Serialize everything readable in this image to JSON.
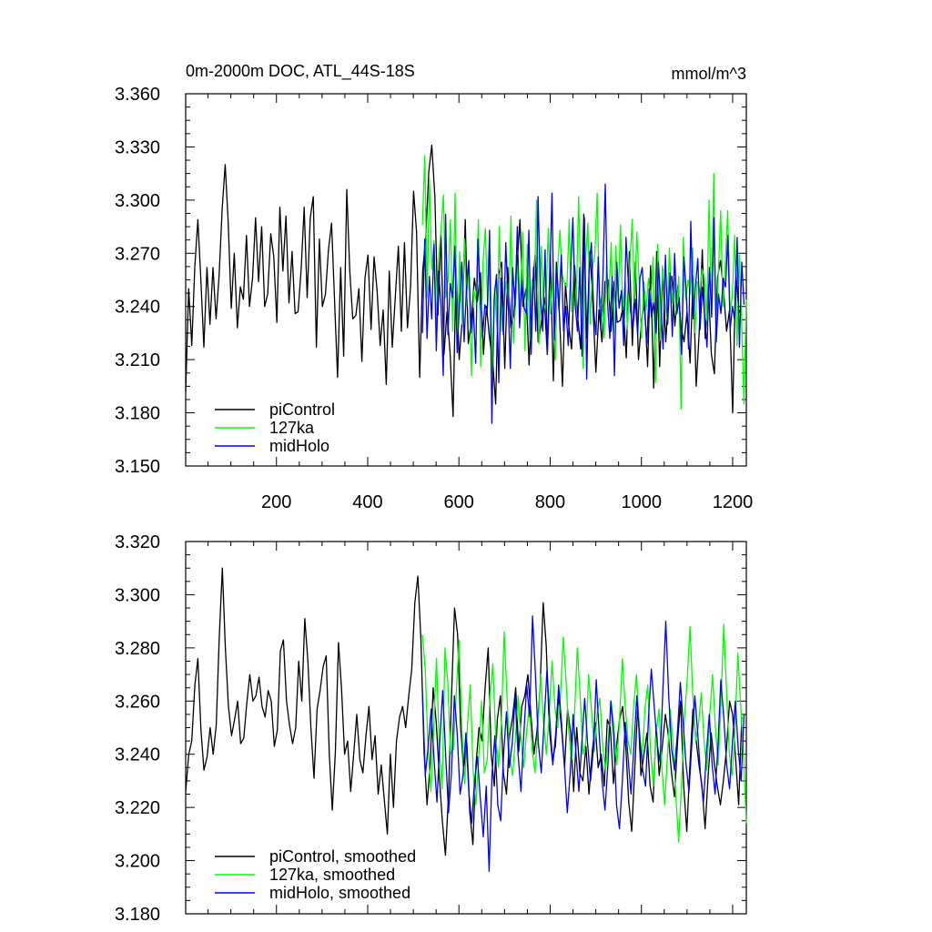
{
  "chart_data": [
    {
      "type": "line",
      "title": "0m-2000m DOC, ATL_44S-18S",
      "units": "mmol/m^3",
      "xlabel": "",
      "ylabel": "",
      "xlim": [
        1,
        1230
      ],
      "ylim": [
        3.15,
        3.36
      ],
      "xticks": [
        200,
        400,
        600,
        800,
        1000,
        1200
      ],
      "xtick_labels": [
        "200",
        "400",
        "600",
        "800",
        "1000",
        "1200"
      ],
      "yticks": [
        3.15,
        3.18,
        3.21,
        3.24,
        3.27,
        3.3,
        3.33,
        3.36
      ],
      "ytick_labels": [
        "3.150",
        "3.180",
        "3.210",
        "3.240",
        "3.270",
        "3.300",
        "3.330",
        "3.360"
      ],
      "legend": "lower-left",
      "series": [
        {
          "name": "piControl",
          "color": "#000000",
          "x_range": [
            1,
            1220
          ],
          "approx_mean": 3.25,
          "approx_min": 3.178,
          "approx_max": 3.331,
          "values": [
            3.192,
            3.25,
            3.218,
            3.262,
            3.289,
            3.255,
            3.217,
            3.262,
            3.23,
            3.262,
            3.233,
            3.257,
            3.295,
            3.32,
            3.288,
            3.239,
            3.27,
            3.228,
            3.251,
            3.244,
            3.28,
            3.24,
            3.256,
            3.29,
            3.254,
            3.285,
            3.24,
            3.247,
            3.281,
            3.268,
            3.231,
            3.296,
            3.26,
            3.291,
            3.242,
            3.271,
            3.236,
            3.237,
            3.261,
            3.296,
            3.245,
            3.29,
            3.302,
            3.217,
            3.278,
            3.24,
            3.247,
            3.272,
            3.287,
            3.243,
            3.2,
            3.262,
            3.212,
            3.306,
            3.26,
            3.233,
            3.235,
            3.25,
            3.209,
            3.256,
            3.269,
            3.227,
            3.268,
            3.249,
            3.218,
            3.238,
            3.196,
            3.26,
            3.217,
            3.246,
            3.274,
            3.226,
            3.276,
            3.228,
            3.251,
            3.305,
            3.282,
            3.2,
            3.26,
            3.279,
            3.316,
            3.331,
            3.302,
            3.235,
            3.28,
            3.213,
            3.237,
            3.214,
            3.178,
            3.262,
            3.21,
            3.232,
            3.289,
            3.219,
            3.232,
            3.256,
            3.243,
            3.259,
            3.213,
            3.24,
            3.222,
            3.21,
            3.185,
            3.258,
            3.265,
            3.205,
            3.262,
            3.228,
            3.235,
            3.262,
            3.289,
            3.24,
            3.25,
            3.207,
            3.248,
            3.269,
            3.22,
            3.23,
            3.245,
            3.213,
            3.269,
            3.198,
            3.265,
            3.235,
            3.195,
            3.253,
            3.23,
            3.216,
            3.263,
            3.234,
            3.216,
            3.292,
            3.222,
            3.271,
            3.241,
            3.203,
            3.238,
            3.22,
            3.254,
            3.255,
            3.226,
            3.254,
            3.231,
            3.232,
            3.24,
            3.211,
            3.271,
            3.218,
            3.265,
            3.21,
            3.231,
            3.243,
            3.206,
            3.263,
            3.194,
            3.271,
            3.206,
            3.261,
            3.22,
            3.249,
            3.257,
            3.229,
            3.252,
            3.229,
            3.22,
            3.237,
            3.208,
            3.257,
            3.195,
            3.225,
            3.272,
            3.222,
            3.252,
            3.213,
            3.202,
            3.256,
            3.266,
            3.249,
            3.226,
            3.238,
            3.18,
            3.26,
            3.238,
            3.235
          ]
        },
        {
          "name": "127ka",
          "color": "#00ff00",
          "x_range": [
            520,
            1230
          ],
          "approx_mean": 3.252,
          "approx_min": 3.182,
          "approx_max": 3.325,
          "values": [
            3.286,
            3.325,
            3.245,
            3.312,
            3.261,
            3.277,
            3.23,
            3.268,
            3.284,
            3.303,
            3.245,
            3.255,
            3.289,
            3.226,
            3.304,
            3.214,
            3.271,
            3.23,
            3.278,
            3.241,
            3.265,
            3.201,
            3.249,
            3.244,
            3.289,
            3.206,
            3.265,
            3.284,
            3.24,
            3.27,
            3.203,
            3.251,
            3.226,
            3.285,
            3.226,
            3.242,
            3.254,
            3.238,
            3.291,
            3.219,
            3.242,
            3.265,
            3.239,
            3.282,
            3.215,
            3.275,
            3.221,
            3.255,
            3.25,
            3.3,
            3.219,
            3.274,
            3.237,
            3.243,
            3.284,
            3.236,
            3.259,
            3.21,
            3.261,
            3.283,
            3.258,
            3.253,
            3.251,
            3.289,
            3.237,
            3.265,
            3.24,
            3.302,
            3.25,
            3.205,
            3.266,
            3.287,
            3.23,
            3.262,
            3.27,
            3.304,
            3.24,
            3.246,
            3.222,
            3.264,
            3.243,
            3.276,
            3.225,
            3.274,
            3.243,
            3.286,
            3.238,
            3.254,
            3.227,
            3.264,
            3.289,
            3.242,
            3.282,
            3.255,
            3.222,
            3.254,
            3.238,
            3.256,
            3.242,
            3.268,
            3.197,
            3.275,
            3.221,
            3.263,
            3.244,
            3.233,
            3.273,
            3.242,
            3.256,
            3.235,
            3.257,
            3.182,
            3.279,
            3.244,
            3.255,
            3.247,
            3.273,
            3.225,
            3.254,
            3.248,
            3.261,
            3.257,
            3.232,
            3.3,
            3.236,
            3.315,
            3.22,
            3.259,
            3.294,
            3.24,
            3.266,
            3.294,
            3.237,
            3.246,
            3.28,
            3.218,
            3.269,
            3.23,
            3.185,
            3.244
          ]
        },
        {
          "name": "midHolo",
          "color": "#0000ff",
          "x_range": [
            520,
            1225
          ],
          "approx_mean": 3.248,
          "approx_min": 3.174,
          "approx_max": 3.309,
          "values": [
            3.225,
            3.278,
            3.222,
            3.257,
            3.233,
            3.275,
            3.215,
            3.26,
            3.241,
            3.201,
            3.292,
            3.224,
            3.253,
            3.245,
            3.274,
            3.214,
            3.241,
            3.265,
            3.22,
            3.249,
            3.266,
            3.225,
            3.239,
            3.208,
            3.278,
            3.245,
            3.223,
            3.241,
            3.237,
            3.283,
            3.174,
            3.244,
            3.258,
            3.197,
            3.256,
            3.224,
            3.276,
            3.244,
            3.205,
            3.262,
            3.24,
            3.285,
            3.228,
            3.255,
            3.239,
            3.236,
            3.283,
            3.213,
            3.262,
            3.226,
            3.302,
            3.246,
            3.226,
            3.272,
            3.213,
            3.255,
            3.304,
            3.221,
            3.263,
            3.238,
            3.269,
            3.226,
            3.24,
            3.218,
            3.256,
            3.29,
            3.241,
            3.226,
            3.262,
            3.212,
            3.29,
            3.199,
            3.261,
            3.276,
            3.238,
            3.224,
            3.268,
            3.227,
            3.256,
            3.309,
            3.242,
            3.222,
            3.257,
            3.201,
            3.265,
            3.239,
            3.249,
            3.218,
            3.279,
            3.253,
            3.237,
            3.228,
            3.244,
            3.224,
            3.256,
            3.262,
            3.238,
            3.219,
            3.25,
            3.234,
            3.242,
            3.225,
            3.265,
            3.241,
            3.216,
            3.269,
            3.23,
            3.259,
            3.223,
            3.27,
            3.236,
            3.245,
            3.213,
            3.268,
            3.249,
            3.216,
            3.288,
            3.233,
            3.251,
            3.267,
            3.227,
            3.251,
            3.234,
            3.217,
            3.262,
            3.234,
            3.29,
            3.22,
            3.247,
            3.236,
            3.256,
            3.251,
            3.28,
            3.227,
            3.24,
            3.232,
            3.279,
            3.217,
            3.265,
            3.241
          ]
        }
      ]
    },
    {
      "type": "line",
      "title": "",
      "xlabel": "",
      "ylabel": "",
      "xlim": [
        1,
        1230
      ],
      "ylim": [
        3.18,
        3.32
      ],
      "xticks": [
        200,
        400,
        600,
        800,
        1000,
        1200
      ],
      "xtick_labels": [],
      "yticks": [
        3.18,
        3.2,
        3.22,
        3.24,
        3.26,
        3.28,
        3.3,
        3.32
      ],
      "ytick_labels": [
        "3.180",
        "3.200",
        "3.220",
        "3.240",
        "3.260",
        "3.280",
        "3.300",
        "3.320"
      ],
      "legend": "lower-left",
      "series": [
        {
          "name": "piControl, smoothed",
          "color": "#000000",
          "x_range": [
            1,
            1220
          ],
          "approx_mean": 3.248,
          "approx_min": 3.202,
          "approx_max": 3.31,
          "values": [
            3.226,
            3.24,
            3.245,
            3.266,
            3.276,
            3.249,
            3.234,
            3.239,
            3.25,
            3.24,
            3.251,
            3.284,
            3.31,
            3.28,
            3.258,
            3.247,
            3.253,
            3.26,
            3.244,
            3.246,
            3.259,
            3.27,
            3.26,
            3.262,
            3.269,
            3.258,
            3.254,
            3.264,
            3.26,
            3.243,
            3.249,
            3.279,
            3.283,
            3.26,
            3.251,
            3.244,
            3.25,
            3.275,
            3.26,
            3.291,
            3.275,
            3.25,
            3.231,
            3.257,
            3.264,
            3.273,
            3.277,
            3.24,
            3.219,
            3.241,
            3.282,
            3.265,
            3.24,
            3.245,
            3.226,
            3.24,
            3.255,
            3.238,
            3.233,
            3.247,
            3.258,
            3.238,
            3.247,
            3.225,
            3.236,
            3.223,
            3.21,
            3.24,
            3.22,
            3.245,
            3.254,
            3.258,
            3.25,
            3.262,
            3.272,
            3.297,
            3.307,
            3.283,
            3.241,
            3.221,
            3.236,
            3.265,
            3.252,
            3.232,
            3.215,
            3.202,
            3.224,
            3.262,
            3.295,
            3.285,
            3.25,
            3.234,
            3.245,
            3.218,
            3.206,
            3.236,
            3.25,
            3.245,
            3.265,
            3.28,
            3.24,
            3.228,
            3.253,
            3.262,
            3.233,
            3.225,
            3.247,
            3.254,
            3.265,
            3.241,
            3.258,
            3.262,
            3.27,
            3.255,
            3.24,
            3.249,
            3.265,
            3.297,
            3.281,
            3.25,
            3.238,
            3.243,
            3.262,
            3.25,
            3.235,
            3.257,
            3.248,
            3.226,
            3.25,
            3.233,
            3.23,
            3.243,
            3.225,
            3.24,
            3.252,
            3.235,
            3.24,
            3.228,
            3.253,
            3.25,
            3.229,
            3.243,
            3.253,
            3.258,
            3.244,
            3.222,
            3.211,
            3.235,
            3.259,
            3.232,
            3.24,
            3.248,
            3.228,
            3.222,
            3.251,
            3.232,
            3.243,
            3.255,
            3.247,
            3.233,
            3.224,
            3.245,
            3.26,
            3.228,
            3.211,
            3.235,
            3.257,
            3.246,
            3.236,
            3.228,
            3.212,
            3.232,
            3.248,
            3.237,
            3.228,
            3.221,
            3.23,
            3.242,
            3.26,
            3.255,
            3.238,
            3.221,
            3.254
          ]
        },
        {
          "name": "127ka, smoothed",
          "color": "#00ff00",
          "x_range": [
            520,
            1230
          ],
          "approx_mean": 3.25,
          "approx_min": 3.207,
          "approx_max": 3.289,
          "values": [
            3.285,
            3.272,
            3.242,
            3.226,
            3.25,
            3.276,
            3.242,
            3.227,
            3.28,
            3.267,
            3.24,
            3.242,
            3.263,
            3.283,
            3.249,
            3.229,
            3.251,
            3.266,
            3.234,
            3.221,
            3.239,
            3.26,
            3.233,
            3.238,
            3.262,
            3.274,
            3.247,
            3.235,
            3.251,
            3.286,
            3.262,
            3.239,
            3.232,
            3.246,
            3.262,
            3.245,
            3.235,
            3.249,
            3.258,
            3.241,
            3.233,
            3.25,
            3.27,
            3.252,
            3.24,
            3.255,
            3.275,
            3.258,
            3.25,
            3.262,
            3.284,
            3.267,
            3.248,
            3.238,
            3.255,
            3.28,
            3.262,
            3.24,
            3.244,
            3.27,
            3.257,
            3.241,
            3.255,
            3.261,
            3.243,
            3.234,
            3.246,
            3.26,
            3.25,
            3.236,
            3.253,
            3.276,
            3.258,
            3.245,
            3.24,
            3.258,
            3.27,
            3.25,
            3.238,
            3.257,
            3.266,
            3.241,
            3.228,
            3.248,
            3.257,
            3.235,
            3.221,
            3.24,
            3.257,
            3.244,
            3.224,
            3.207,
            3.229,
            3.253,
            3.268,
            3.288,
            3.262,
            3.245,
            3.251,
            3.263,
            3.245,
            3.234,
            3.255,
            3.27,
            3.25,
            3.236,
            3.259,
            3.289,
            3.263,
            3.24,
            3.232,
            3.25,
            3.278,
            3.258,
            3.24,
            3.214
          ]
        },
        {
          "name": "midHolo, smoothed",
          "color": "#0000ff",
          "x_range": [
            520,
            1225
          ],
          "approx_mean": 3.245,
          "approx_min": 3.196,
          "approx_max": 3.292,
          "values": [
            3.264,
            3.232,
            3.243,
            3.257,
            3.238,
            3.222,
            3.245,
            3.264,
            3.24,
            3.218,
            3.233,
            3.262,
            3.248,
            3.225,
            3.232,
            3.248,
            3.226,
            3.214,
            3.23,
            3.239,
            3.223,
            3.209,
            3.228,
            3.196,
            3.232,
            3.247,
            3.221,
            3.215,
            3.24,
            3.256,
            3.235,
            3.244,
            3.262,
            3.24,
            3.226,
            3.248,
            3.266,
            3.254,
            3.292,
            3.27,
            3.244,
            3.233,
            3.252,
            3.272,
            3.252,
            3.236,
            3.248,
            3.266,
            3.252,
            3.236,
            3.218,
            3.233,
            3.255,
            3.24,
            3.226,
            3.244,
            3.261,
            3.244,
            3.23,
            3.242,
            3.268,
            3.248,
            3.23,
            3.219,
            3.236,
            3.26,
            3.247,
            3.221,
            3.212,
            3.23,
            3.252,
            3.238,
            3.225,
            3.243,
            3.262,
            3.246,
            3.234,
            3.228,
            3.253,
            3.272,
            3.258,
            3.244,
            3.237,
            3.265,
            3.29,
            3.262,
            3.242,
            3.234,
            3.248,
            3.267,
            3.252,
            3.236,
            3.226,
            3.244,
            3.262,
            3.248,
            3.232,
            3.222,
            3.24,
            3.255,
            3.236,
            3.225,
            3.243,
            3.268,
            3.254,
            3.236,
            3.227,
            3.245,
            3.26,
            3.242,
            3.23,
            3.255
          ]
        }
      ]
    }
  ]
}
